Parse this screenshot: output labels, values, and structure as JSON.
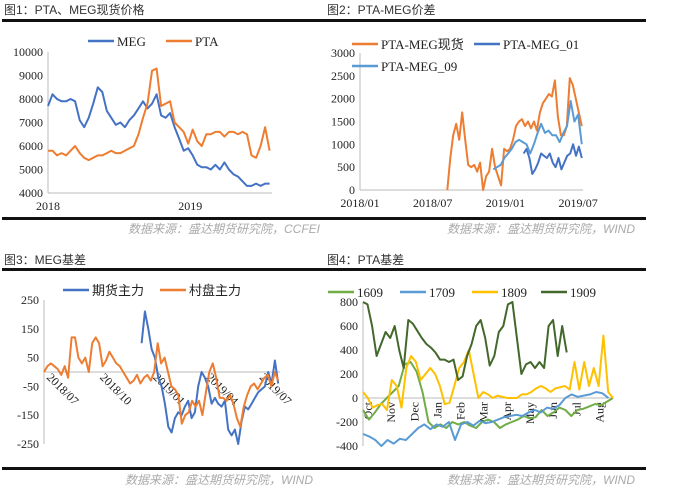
{
  "panels": [
    {
      "title": "图1：PTA、MEG现货价格",
      "source": "数据来源：盛达期货研究院，CCFEI"
    },
    {
      "title": "图2：PTA-MEG价差",
      "source": "数据来源：盛达期货研究院，WIND"
    },
    {
      "title": "图3：MEG基差",
      "source": "数据来源：盛达期货研究院，WIND"
    },
    {
      "title": "图4：PTA基差",
      "source": "数据来源：盛达期货研究院，WIND"
    }
  ],
  "chart_data": [
    {
      "type": "line",
      "title": "PTA、MEG现货价格",
      "ylim": [
        4000,
        10000
      ],
      "yticks": [
        4000,
        5000,
        6000,
        7000,
        8000,
        9000,
        10000
      ],
      "xlim_months": [
        0,
        18.9
      ],
      "xticks": [
        {
          "m": 0,
          "label": "2018"
        },
        {
          "m": 12,
          "label": "2019"
        }
      ],
      "series": [
        {
          "name": "MEG",
          "color": "#4472C4",
          "start": 0,
          "end": 18.7,
          "values": [
            7700,
            8200,
            8000,
            7900,
            7900,
            8000,
            7900,
            7100,
            6800,
            7200,
            7800,
            8500,
            8300,
            7500,
            7200,
            6900,
            7000,
            6800,
            7100,
            7300,
            7600,
            7900,
            7600,
            7800,
            8200,
            7300,
            7200,
            7400,
            6800,
            6300,
            5800,
            5900,
            5600,
            5200,
            5100,
            5100,
            5000,
            5200,
            5000,
            5300,
            5000,
            4800,
            4700,
            4500,
            4300,
            4300,
            4400,
            4300,
            4400,
            4400
          ]
        },
        {
          "name": "PTA",
          "color": "#ED7D31",
          "start": 0,
          "end": 18.7,
          "values": [
            5800,
            5800,
            5600,
            5700,
            5600,
            5800,
            6000,
            5700,
            5500,
            5400,
            5500,
            5600,
            5600,
            5700,
            5800,
            5700,
            5700,
            5800,
            5900,
            6000,
            6500,
            7200,
            7800,
            9200,
            9300,
            7700,
            7800,
            7900,
            7000,
            6800,
            6600,
            6100,
            6700,
            6200,
            6000,
            6500,
            6500,
            6600,
            6600,
            6400,
            6600,
            6600,
            6500,
            6600,
            6500,
            5600,
            5500,
            6000,
            6800,
            5800
          ]
        }
      ]
    },
    {
      "type": "line",
      "title": "PTA-MEG价差",
      "ylim": [
        0,
        3000
      ],
      "yticks": [
        0,
        500,
        1000,
        1500,
        2000,
        2500,
        3000
      ],
      "xlim_months": [
        0,
        18.4
      ],
      "xticks": [
        {
          "m": 0,
          "label": "2018/01"
        },
        {
          "m": 6,
          "label": "2018/07"
        },
        {
          "m": 12,
          "label": "2019/01"
        },
        {
          "m": 18,
          "label": "2019/07"
        }
      ],
      "series": [
        {
          "name": "PTA-MEG现货",
          "color": "#ED7D31",
          "start": 7.2,
          "end": 18.3,
          "values": [
            0,
            700,
            1200,
            1450,
            1100,
            1700,
            1100,
            550,
            500,
            550,
            400,
            600,
            0,
            300,
            400,
            900,
            500,
            300,
            100,
            900,
            850,
            900,
            1100,
            1400,
            1500,
            1550,
            1400,
            1500,
            1350,
            1500,
            1300,
            1700,
            1900,
            2000,
            2100,
            2050,
            2400,
            1600,
            1200,
            1200,
            1400,
            2450,
            2300,
            2000,
            1700,
            1400
          ]
        },
        {
          "name": "PTA-MEG_01",
          "color": "#4472C4",
          "start": 13.5,
          "end": 18.3,
          "values": [
            800,
            900,
            700,
            350,
            450,
            600,
            800,
            750,
            700,
            800,
            600,
            500,
            700,
            450,
            600,
            750,
            800,
            1000,
            750,
            950,
            700
          ]
        },
        {
          "name": "PTA-MEG_09",
          "color": "#5B9BD5",
          "start": 11,
          "end": 18.3,
          "values": [
            450,
            500,
            550,
            700,
            800,
            900,
            1050,
            1100,
            1050,
            1000,
            800,
            1000,
            1250,
            1450,
            1250,
            1300,
            1200,
            1200,
            1050,
            1250,
            1400,
            1950,
            1500,
            1650,
            1000
          ]
        }
      ]
    },
    {
      "type": "line",
      "title": "MEG基差",
      "ylim": [
        -250,
        250
      ],
      "yticks": [
        -250,
        -150,
        -50,
        50,
        150,
        250
      ],
      "xlim_months": [
        0,
        13.3
      ],
      "xticks": [
        {
          "m": 0,
          "label": "2018/07"
        },
        {
          "m": 3,
          "label": "2018/10"
        },
        {
          "m": 6,
          "label": "2019/01"
        },
        {
          "m": 9,
          "label": "2019/04"
        },
        {
          "m": 12,
          "label": "2019/07"
        }
      ],
      "series": [
        {
          "name": "期货主力",
          "color": "#4472C4",
          "start": 5.5,
          "end": 13.2,
          "values": [
            100,
            210,
            150,
            80,
            50,
            -20,
            -50,
            -110,
            -190,
            -210,
            -160,
            -140,
            -150,
            -120,
            -100,
            -160,
            -140,
            -50,
            0,
            -20,
            -50,
            -110,
            -90,
            -110,
            -120,
            -100,
            -200,
            -220,
            -200,
            -250,
            -170,
            -120,
            -130,
            -110,
            -90,
            -70,
            -60,
            -50,
            0,
            -40,
            40,
            -40
          ]
        },
        {
          "name": "村盘主力",
          "color": "#ED7D31",
          "start": 0,
          "end": 13.2,
          "values": [
            0,
            20,
            30,
            20,
            10,
            -10,
            20,
            -20,
            120,
            120,
            50,
            30,
            50,
            0,
            100,
            120,
            100,
            20,
            40,
            70,
            50,
            30,
            20,
            0,
            -20,
            -40,
            -30,
            -10,
            -40,
            -20,
            -10,
            -30,
            0,
            100,
            30,
            50,
            0,
            -50,
            -60,
            -80,
            -180,
            -150,
            -140,
            -100,
            -120,
            -100,
            -150,
            -70,
            0,
            30,
            -20,
            -90,
            -90,
            -100,
            -80,
            -110,
            -160,
            -190,
            -120,
            -80,
            -50,
            -40,
            -60,
            -40,
            -20,
            -10,
            -50,
            0,
            -30
          ]
        }
      ]
    },
    {
      "type": "line",
      "title": "PTA基差",
      "ylim": [
        -400,
        800
      ],
      "yticks": [
        -400,
        -200,
        0,
        200,
        400,
        600,
        800
      ],
      "xlim_months": [
        0,
        10.8
      ],
      "xticks": [
        {
          "m": 0,
          "label": "Oct"
        },
        {
          "m": 1,
          "label": "Nov"
        },
        {
          "m": 2,
          "label": "Dec"
        },
        {
          "m": 3,
          "label": "Jan"
        },
        {
          "m": 4,
          "label": "Feb"
        },
        {
          "m": 5,
          "label": "Mar"
        },
        {
          "m": 6,
          "label": "Apr"
        },
        {
          "m": 7,
          "label": "May"
        },
        {
          "m": 8,
          "label": "Jun"
        },
        {
          "m": 9,
          "label": "Jul"
        },
        {
          "m": 10,
          "label": "Aug"
        }
      ],
      "series": [
        {
          "name": "1609",
          "color": "#70AD47",
          "start": 0,
          "end": 10.8,
          "values": [
            -100,
            -180,
            -120,
            -50,
            0,
            50,
            100,
            280,
            300,
            220,
            50,
            -200,
            -250,
            -220,
            -250,
            -200,
            -220,
            -200,
            -230,
            -250,
            -200,
            -180,
            -200,
            -250,
            -220,
            -200,
            -180,
            -150,
            -170,
            -160,
            -100,
            -150,
            -120,
            -80,
            -100,
            -150,
            -100,
            -90,
            -70,
            -50,
            -60,
            -30,
            0
          ]
        },
        {
          "name": "1709",
          "color": "#5B9BD5",
          "start": 0,
          "end": 10.6,
          "values": [
            -300,
            -320,
            -350,
            -400,
            -350,
            -380,
            -340,
            -350,
            -300,
            -250,
            -220,
            -260,
            -220,
            -240,
            -200,
            -350,
            -220,
            -200,
            -230,
            -190,
            -210,
            -200,
            -180,
            -160,
            -150,
            -140,
            -150,
            -120,
            -100,
            -120,
            -80,
            -90,
            -60,
            0,
            30,
            10,
            20,
            30,
            50,
            40,
            0
          ]
        },
        {
          "name": "1809",
          "color": "#FFC000",
          "start": 0,
          "end": 10.8,
          "values": [
            50,
            0,
            -80,
            -60,
            -50,
            -100,
            150,
            100,
            -80,
            250,
            350,
            300,
            150,
            200,
            250,
            200,
            100,
            -50,
            -40,
            100,
            250,
            300,
            400,
            200,
            0,
            50,
            30,
            0,
            20,
            10,
            0,
            0,
            0,
            30,
            30,
            50,
            80,
            100,
            80,
            50,
            80,
            90,
            100,
            70,
            300,
            70,
            300,
            100,
            250,
            100,
            520,
            50,
            0
          ]
        },
        {
          "name": "1909",
          "color": "#43682B",
          "start": 0,
          "end": 8.8,
          "values": [
            800,
            780,
            600,
            350,
            450,
            550,
            500,
            600,
            400,
            250,
            650,
            620,
            560,
            500,
            450,
            420,
            380,
            320,
            320,
            300,
            320,
            150,
            180,
            350,
            450,
            600,
            650,
            500,
            270,
            350,
            550,
            600,
            780,
            800,
            500,
            200,
            280,
            300,
            250,
            300,
            250,
            600,
            650,
            350,
            600,
            380
          ]
        }
      ]
    }
  ]
}
